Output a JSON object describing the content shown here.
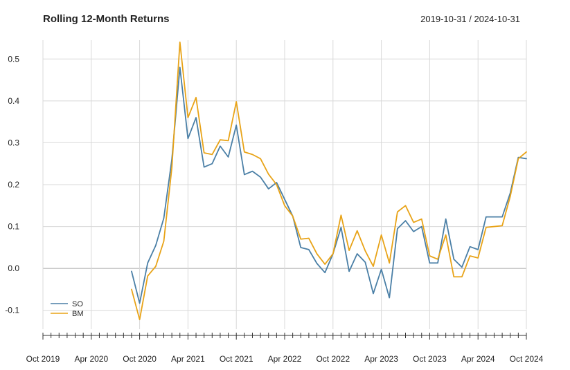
{
  "chart_data": {
    "type": "line",
    "title": "Rolling 12-Month Returns",
    "date_range": "2019-10-31 / 2024-10-31",
    "xlabel": "",
    "ylabel": "",
    "ylim": [
      -0.145,
      0.545
    ],
    "y_ticks": [
      -0.1,
      0.0,
      0.1,
      0.2,
      0.3,
      0.4,
      0.5
    ],
    "y_tick_labels": [
      "-0.1",
      "0.0",
      "0.1",
      "0.2",
      "0.3",
      "0.4",
      "0.5"
    ],
    "x_start": "2019-10",
    "x_end": "2024-10",
    "x_tick_labels": [
      "Oct 2019",
      "Apr 2020",
      "Oct 2020",
      "Apr 2021",
      "Oct 2021",
      "Apr 2022",
      "Oct 2022",
      "Apr 2023",
      "Oct 2023",
      "Apr 2024",
      "Oct 2024"
    ],
    "grid": true,
    "legend_position": "bottom-left",
    "series": [
      {
        "name": "SO",
        "color": "#4a7fa6",
        "points": [
          [
            "2020-09",
            -0.007
          ],
          [
            "2020-10",
            -0.083
          ],
          [
            "2020-11",
            0.013
          ],
          [
            "2020-12",
            0.055
          ],
          [
            "2021-01",
            0.12
          ],
          [
            "2021-02",
            0.26
          ],
          [
            "2021-03",
            0.48
          ],
          [
            "2021-04",
            0.31
          ],
          [
            "2021-05",
            0.36
          ],
          [
            "2021-06",
            0.242
          ],
          [
            "2021-07",
            0.25
          ],
          [
            "2021-08",
            0.292
          ],
          [
            "2021-09",
            0.266
          ],
          [
            "2021-10",
            0.342
          ],
          [
            "2021-11",
            0.224
          ],
          [
            "2021-12",
            0.232
          ],
          [
            "2022-01",
            0.218
          ],
          [
            "2022-02",
            0.19
          ],
          [
            "2022-03",
            0.205
          ],
          [
            "2022-04",
            0.165
          ],
          [
            "2022-05",
            0.125
          ],
          [
            "2022-06",
            0.05
          ],
          [
            "2022-07",
            0.045
          ],
          [
            "2022-08",
            0.012
          ],
          [
            "2022-09",
            -0.01
          ],
          [
            "2022-10",
            0.035
          ],
          [
            "2022-11",
            0.098
          ],
          [
            "2022-12",
            -0.007
          ],
          [
            "2023-01",
            0.035
          ],
          [
            "2023-02",
            0.015
          ],
          [
            "2023-03",
            -0.06
          ],
          [
            "2023-04",
            -0.002
          ],
          [
            "2023-05",
            -0.07
          ],
          [
            "2023-06",
            0.095
          ],
          [
            "2023-07",
            0.114
          ],
          [
            "2023-08",
            0.088
          ],
          [
            "2023-09",
            0.1
          ],
          [
            "2023-10",
            0.013
          ],
          [
            "2023-11",
            0.013
          ],
          [
            "2023-12",
            0.118
          ],
          [
            "2024-01",
            0.022
          ],
          [
            "2024-02",
            0.003
          ],
          [
            "2024-03",
            0.052
          ],
          [
            "2024-04",
            0.045
          ],
          [
            "2024-05",
            0.123
          ],
          [
            "2024-06",
            0.123
          ],
          [
            "2024-07",
            0.123
          ],
          [
            "2024-08",
            0.18
          ],
          [
            "2024-09",
            0.265
          ],
          [
            "2024-10",
            0.262
          ]
        ]
      },
      {
        "name": "BM",
        "color": "#e8a317",
        "points": [
          [
            "2020-09",
            -0.05
          ],
          [
            "2020-10",
            -0.122
          ],
          [
            "2020-11",
            -0.018
          ],
          [
            "2020-12",
            0.005
          ],
          [
            "2021-01",
            0.065
          ],
          [
            "2021-02",
            0.24
          ],
          [
            "2021-03",
            0.54
          ],
          [
            "2021-04",
            0.36
          ],
          [
            "2021-05",
            0.408
          ],
          [
            "2021-06",
            0.276
          ],
          [
            "2021-07",
            0.272
          ],
          [
            "2021-08",
            0.307
          ],
          [
            "2021-09",
            0.305
          ],
          [
            "2021-10",
            0.398
          ],
          [
            "2021-11",
            0.278
          ],
          [
            "2021-12",
            0.272
          ],
          [
            "2022-01",
            0.262
          ],
          [
            "2022-02",
            0.225
          ],
          [
            "2022-03",
            0.2
          ],
          [
            "2022-04",
            0.15
          ],
          [
            "2022-05",
            0.125
          ],
          [
            "2022-06",
            0.07
          ],
          [
            "2022-07",
            0.072
          ],
          [
            "2022-08",
            0.035
          ],
          [
            "2022-09",
            0.01
          ],
          [
            "2022-10",
            0.035
          ],
          [
            "2022-11",
            0.127
          ],
          [
            "2022-12",
            0.043
          ],
          [
            "2023-01",
            0.09
          ],
          [
            "2023-02",
            0.042
          ],
          [
            "2023-03",
            0.005
          ],
          [
            "2023-04",
            0.08
          ],
          [
            "2023-05",
            0.013
          ],
          [
            "2023-06",
            0.135
          ],
          [
            "2023-07",
            0.15
          ],
          [
            "2023-08",
            0.11
          ],
          [
            "2023-09",
            0.118
          ],
          [
            "2023-10",
            0.03
          ],
          [
            "2023-11",
            0.022
          ],
          [
            "2023-12",
            0.08
          ],
          [
            "2024-01",
            -0.02
          ],
          [
            "2024-02",
            -0.02
          ],
          [
            "2024-03",
            0.03
          ],
          [
            "2024-04",
            0.025
          ],
          [
            "2024-05",
            0.098
          ],
          [
            "2024-06",
            0.1
          ],
          [
            "2024-07",
            0.102
          ],
          [
            "2024-08",
            0.172
          ],
          [
            "2024-09",
            0.262
          ],
          [
            "2024-10",
            0.278
          ]
        ]
      }
    ]
  }
}
